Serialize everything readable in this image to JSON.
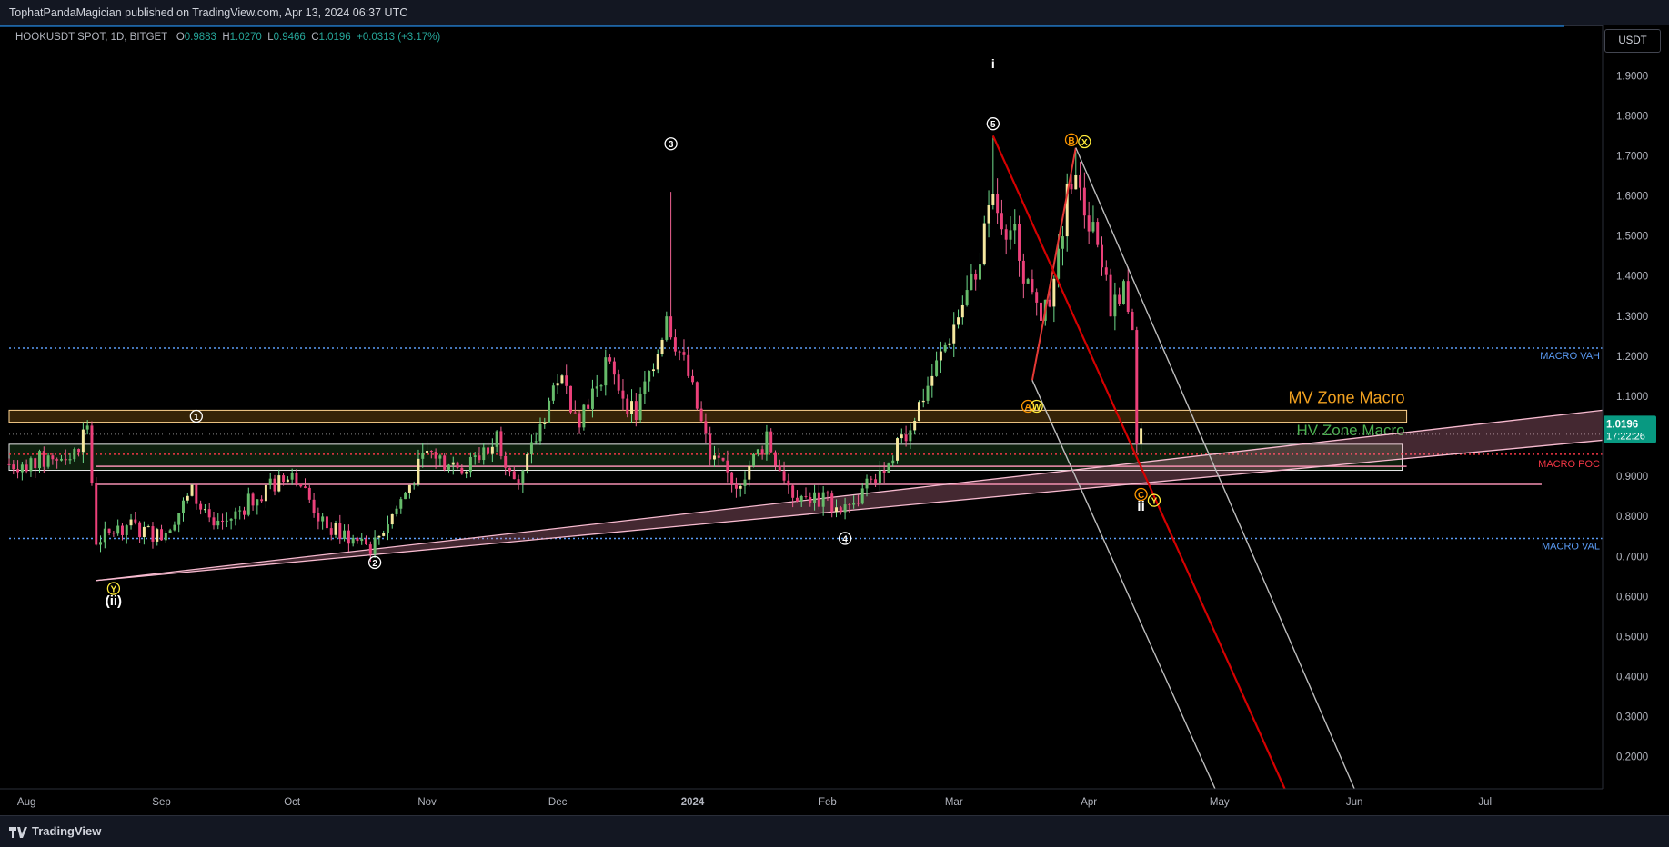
{
  "header": {
    "published": "TophatPandaMagician published on TradingView.com, Apr 13, 2024 06:37 UTC"
  },
  "legend": {
    "symbol": "HOOKUSDT SPOT, 1D, BITGET",
    "o_label": "O",
    "o": "0.9883",
    "h_label": "H",
    "h": "1.0270",
    "l_label": "L",
    "l": "0.9466",
    "c_label": "C",
    "c": "1.0196",
    "change": "+0.0313 (+3.17%)"
  },
  "currency": "USDT",
  "footer": {
    "brand": "TradingView"
  },
  "price_label": {
    "price": "1.0196",
    "countdown": "17:22:26"
  },
  "colors": {
    "up": "#26a69a",
    "down": "#ef5350",
    "accent": "#1e88e5",
    "mv_zone": "#f0a020",
    "hv_zone": "#4caf50",
    "poc": "#f23645",
    "macro_line": "#2962ff"
  },
  "chart_data": {
    "type": "candlestick",
    "y_range": [
      0.12,
      1.98
    ],
    "y_ticks": [
      "1.9000",
      "1.8000",
      "1.7000",
      "1.6000",
      "1.5000",
      "1.4000",
      "1.3000",
      "1.2000",
      "1.1000",
      "1.0000",
      "0.9000",
      "0.8000",
      "0.7000",
      "0.6000",
      "0.5000",
      "0.4000",
      "0.3000",
      "0.2000"
    ],
    "y_tick_values": [
      1.9,
      1.8,
      1.7,
      1.6,
      1.5,
      1.4,
      1.3,
      1.2,
      1.1,
      1.0,
      0.9,
      0.8,
      0.7,
      0.6,
      0.5,
      0.4,
      0.3,
      0.2
    ],
    "x_range": [
      "2023-07-28",
      "2024-07-28"
    ],
    "x_ticks": [
      {
        "label": "Aug",
        "date": "2023-08-01"
      },
      {
        "label": "Sep",
        "date": "2023-09-01"
      },
      {
        "label": "Oct",
        "date": "2023-10-01"
      },
      {
        "label": "Nov",
        "date": "2023-11-01"
      },
      {
        "label": "Dec",
        "date": "2023-12-01"
      },
      {
        "label": "2024",
        "date": "2024-01-01"
      },
      {
        "label": "Feb",
        "date": "2024-02-01"
      },
      {
        "label": "Mar",
        "date": "2024-03-01"
      },
      {
        "label": "Apr",
        "date": "2024-04-01"
      },
      {
        "label": "May",
        "date": "2024-05-01"
      },
      {
        "label": "Jun",
        "date": "2024-06-01"
      },
      {
        "label": "Jul",
        "date": "2024-07-01"
      }
    ],
    "price_path": [
      [
        "2023-07-28",
        0.93
      ],
      [
        "2023-08-05",
        0.94
      ],
      [
        "2023-08-12",
        0.96
      ],
      [
        "2023-08-15",
        1.03
      ],
      [
        "2023-08-17",
        0.74
      ],
      [
        "2023-08-24",
        0.78
      ],
      [
        "2023-09-01",
        0.75
      ],
      [
        "2023-09-08",
        0.86
      ],
      [
        "2023-09-13",
        0.76
      ],
      [
        "2023-09-25",
        0.87
      ],
      [
        "2023-10-02",
        0.9
      ],
      [
        "2023-10-08",
        0.78
      ],
      [
        "2023-10-19",
        0.72
      ],
      [
        "2023-10-25",
        0.82
      ],
      [
        "2023-11-01",
        0.96
      ],
      [
        "2023-11-10",
        0.92
      ],
      [
        "2023-11-17",
        1.0
      ],
      [
        "2023-11-22",
        0.87
      ],
      [
        "2023-12-01",
        1.15
      ],
      [
        "2023-12-06",
        1.05
      ],
      [
        "2023-12-12",
        1.18
      ],
      [
        "2023-12-19",
        1.05
      ],
      [
        "2023-12-26",
        1.3
      ],
      [
        "2023-12-31",
        1.15
      ],
      [
        "2024-01-05",
        0.95
      ],
      [
        "2024-01-11",
        0.88
      ],
      [
        "2024-01-18",
        0.99
      ],
      [
        "2024-01-24",
        0.86
      ],
      [
        "2024-01-31",
        0.84
      ],
      [
        "2024-02-06",
        0.82
      ],
      [
        "2024-02-12",
        0.9
      ],
      [
        "2024-02-20",
        1.03
      ],
      [
        "2024-02-27",
        1.2
      ],
      [
        "2024-03-05",
        1.38
      ],
      [
        "2024-03-10",
        1.58
      ],
      [
        "2024-03-15",
        1.5
      ],
      [
        "2024-03-20",
        1.3
      ],
      [
        "2024-03-24",
        1.38
      ],
      [
        "2024-03-28",
        1.66
      ],
      [
        "2024-04-02",
        1.5
      ],
      [
        "2024-04-06",
        1.33
      ],
      [
        "2024-04-09",
        1.38
      ],
      [
        "2024-04-11",
        1.28
      ],
      [
        "2024-04-12",
        0.97
      ],
      [
        "2024-04-13",
        1.0196
      ]
    ],
    "spikes": [
      {
        "date": "2023-12-27",
        "high": 1.61
      },
      {
        "date": "2024-03-10",
        "high": 1.75
      },
      {
        "date": "2024-03-29",
        "high": 1.71
      }
    ],
    "levels": [
      {
        "name": "MACRO VAH",
        "price": 1.22
      },
      {
        "name": "MACRO POC",
        "price": 0.955
      },
      {
        "name": "MACRO VAL",
        "price": 0.745
      }
    ],
    "zones": [
      {
        "name": "MV Zone Macro",
        "from": 1.035,
        "to": 1.065,
        "start": "2023-07-28",
        "end": "2024-06-13"
      },
      {
        "name": "HV Zone Macro",
        "from": 0.915,
        "to": 0.98,
        "start": "2023-07-28",
        "end": "2024-06-13"
      }
    ],
    "support_lines": [
      {
        "start": [
          "2023-08-17",
          0.64
        ],
        "end": [
          "2024-07-28",
          1.065
        ]
      },
      {
        "start": [
          "2023-08-17",
          0.64
        ],
        "end": [
          "2024-07-28",
          0.99
        ]
      }
    ],
    "horizontal_lines": [
      {
        "price": 0.925,
        "start": "2023-08-17",
        "end": "2024-06-13"
      },
      {
        "price": 0.88,
        "start": "2023-08-17",
        "end": "2024-07-14"
      }
    ],
    "channel": {
      "center": {
        "start": [
          "2024-03-10",
          1.75
        ],
        "end": [
          "2024-05-16",
          0.12
        ]
      },
      "upper": {
        "start": [
          "2024-03-29",
          1.72
        ],
        "end": [
          "2024-06-01",
          0.12
        ]
      },
      "lower": {
        "start": [
          "2024-03-19",
          1.14
        ],
        "end": [
          "2024-04-30",
          0.12
        ]
      }
    },
    "wave_path": [
      [
        "2024-03-19",
        1.14
      ],
      [
        "2024-03-29",
        1.72
      ]
    ],
    "wave_labels": [
      {
        "text": "(ii)",
        "date": "2023-08-21",
        "price": 0.59,
        "style": "plain-bold"
      },
      {
        "text": "Y",
        "date": "2023-08-21",
        "price": 0.62,
        "style": "yellow"
      },
      {
        "text": "1",
        "date": "2023-09-09",
        "price": 1.05,
        "style": "white"
      },
      {
        "text": "2",
        "date": "2023-10-20",
        "price": 0.685,
        "style": "white"
      },
      {
        "text": "3",
        "date": "2023-12-27",
        "price": 1.73,
        "style": "white"
      },
      {
        "text": "4",
        "date": "2024-02-05",
        "price": 0.745,
        "style": "white"
      },
      {
        "text": "5",
        "date": "2024-03-10",
        "price": 1.78,
        "style": "white"
      },
      {
        "text": "i",
        "date": "2024-03-10",
        "price": 1.93,
        "style": "plain"
      },
      {
        "text": "B",
        "date": "2024-03-28",
        "price": 1.74,
        "style": "orange"
      },
      {
        "text": "X",
        "date": "2024-03-31",
        "price": 1.735,
        "style": "yellow"
      },
      {
        "text": "A",
        "date": "2024-03-18",
        "price": 1.075,
        "style": "orange"
      },
      {
        "text": "W",
        "date": "2024-03-20",
        "price": 1.075,
        "style": "yellow"
      },
      {
        "text": "C",
        "date": "2024-04-13",
        "price": 0.855,
        "style": "orange"
      },
      {
        "text": "Y",
        "date": "2024-04-16",
        "price": 0.84,
        "style": "yellow"
      },
      {
        "text": "ii",
        "date": "2024-04-13",
        "price": 0.825,
        "style": "plain-bold"
      }
    ]
  }
}
